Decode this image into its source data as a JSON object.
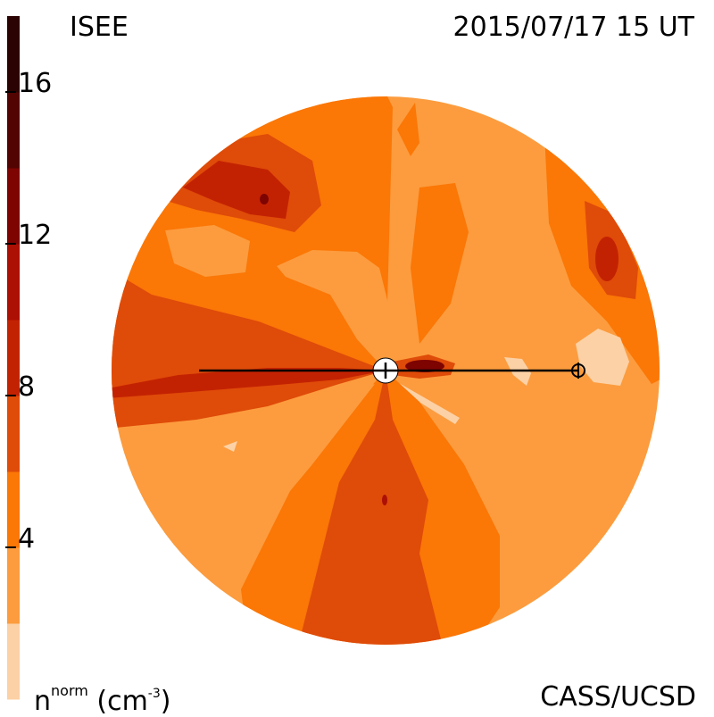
{
  "header": {
    "source": "ISEE",
    "datetime": "2015/07/17 15 UT"
  },
  "footer": {
    "credit": "CASS/UCSD"
  },
  "colorbar": {
    "quantity": "n",
    "quantity_sup": "norm",
    "unit_open": "(cm",
    "unit_exp": "-3",
    "unit_close": ")",
    "ticks": [
      {
        "value": 4,
        "label": "4"
      },
      {
        "value": 8,
        "label": "8"
      },
      {
        "value": 12,
        "label": "12"
      },
      {
        "value": 16,
        "label": "16"
      }
    ],
    "range": [
      0,
      18
    ],
    "bands": [
      {
        "from": 0,
        "to": 2,
        "color": "#fcd1a6"
      },
      {
        "from": 2,
        "to": 4,
        "color": "#fc9c3e"
      },
      {
        "from": 4,
        "to": 6,
        "color": "#fb7706"
      },
      {
        "from": 6,
        "to": 8,
        "color": "#df4b09"
      },
      {
        "from": 8,
        "to": 10,
        "color": "#c32202"
      },
      {
        "from": 10,
        "to": 12,
        "color": "#ac0f03"
      },
      {
        "from": 12,
        "to": 14,
        "color": "#7e0402"
      },
      {
        "from": 14,
        "to": 16,
        "color": "#520403"
      },
      {
        "from": 16,
        "to": 18,
        "color": "#2b0302"
      }
    ]
  },
  "chart_data": {
    "type": "heatmap",
    "title": "",
    "color_scale": [
      0,
      18
    ],
    "features": [
      {
        "name": "sun",
        "symbol": "circle with vertical tick"
      },
      {
        "name": "earth",
        "symbol": "circled plus"
      }
    ],
    "elongation_line": "horizontal line through the Sun and Earth"
  }
}
